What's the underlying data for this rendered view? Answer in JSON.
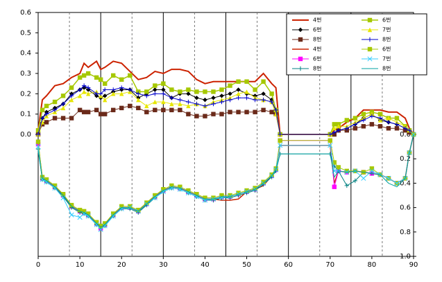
{
  "chart_data": {
    "type": "line",
    "x": [
      0,
      1,
      2,
      4,
      6,
      8,
      10,
      11,
      12,
      14,
      15,
      16,
      18,
      20,
      22,
      24,
      26,
      28,
      30,
      32,
      34,
      36,
      38,
      40,
      42,
      44,
      46,
      48,
      50,
      52,
      54,
      56,
      57,
      58,
      70,
      71,
      72,
      74,
      76,
      78,
      80,
      82,
      84,
      86,
      88,
      89,
      90
    ],
    "xlim": [
      0,
      90
    ],
    "xticks": [
      0,
      10,
      20,
      30,
      40,
      50,
      60,
      70,
      80,
      90
    ],
    "ylim": [
      -0.6,
      0.6
    ],
    "yticks": [
      {
        "value": 0,
        "label": "0.0"
      },
      0.1,
      0.2,
      0.3,
      0.4,
      0.5,
      0.6
    ],
    "y2lim": [
      1,
      -1
    ],
    "y2ticks": [
      {
        "value": 0,
        "label": "0.0"
      },
      0.2,
      0.4,
      0.6,
      0.8,
      {
        "value": 1,
        "label": "1.0"
      }
    ],
    "solid_vlines": [
      15,
      30,
      45,
      60,
      75
    ],
    "dashed_vlines": [
      7.5,
      22.5,
      37.5,
      52.5,
      67.5,
      82.5
    ],
    "legend": "upper right",
    "series": [
      {
        "name": "4번",
        "color": "#cc2200",
        "marker": "none",
        "width": 2,
        "values": [
          0.02,
          0.17,
          0.19,
          0.24,
          0.25,
          0.28,
          0.3,
          0.35,
          0.33,
          0.36,
          0.32,
          0.33,
          0.36,
          0.35,
          0.31,
          0.27,
          0.28,
          0.31,
          0.3,
          0.32,
          0.32,
          0.31,
          0.27,
          0.25,
          0.26,
          0.26,
          0.26,
          0.26,
          0.26,
          0.26,
          0.3,
          0.25,
          0.23,
          0.0,
          0.0,
          0.02,
          0.03,
          0.06,
          0.08,
          0.12,
          0.12,
          0.12,
          0.11,
          0.11,
          0.08,
          0.03,
          0.0
        ]
      },
      {
        "name": "6번",
        "color": "#000000",
        "marker": "diamond",
        "width": 1,
        "values": [
          0.0,
          0.08,
          0.11,
          0.13,
          0.15,
          0.2,
          0.22,
          0.23,
          0.22,
          0.19,
          0.18,
          0.19,
          0.21,
          0.22,
          0.22,
          0.18,
          0.2,
          0.22,
          0.22,
          0.18,
          0.2,
          0.2,
          0.18,
          0.17,
          0.18,
          0.19,
          0.2,
          0.22,
          0.2,
          0.19,
          0.2,
          0.17,
          0.11,
          0.0,
          0.0,
          0.0,
          0.02,
          0.03,
          0.05,
          0.08,
          0.1,
          0.07,
          0.06,
          0.05,
          0.03,
          0.02,
          0.0
        ]
      },
      {
        "name": "8번",
        "color": "#6b2a1a",
        "marker": "square",
        "width": 1,
        "values": [
          0.0,
          0.05,
          0.06,
          0.08,
          0.08,
          0.08,
          0.12,
          0.11,
          0.11,
          0.12,
          0.1,
          0.1,
          0.12,
          0.13,
          0.14,
          0.13,
          0.11,
          0.12,
          0.12,
          0.12,
          0.12,
          0.1,
          0.09,
          0.09,
          0.1,
          0.1,
          0.11,
          0.11,
          0.11,
          0.11,
          0.12,
          0.11,
          0.1,
          0.0,
          0.0,
          0.0,
          0.02,
          0.02,
          0.03,
          0.04,
          0.05,
          0.04,
          0.03,
          0.03,
          0.02,
          0.01,
          0.0
        ]
      },
      {
        "name": "4번",
        "color": "#cc2200",
        "marker": "none",
        "width": 1.5,
        "axis": "y2",
        "values": [
          0.08,
          0.36,
          0.38,
          0.43,
          0.5,
          0.59,
          0.63,
          0.64,
          0.66,
          0.73,
          0.76,
          0.74,
          0.66,
          0.6,
          0.6,
          0.63,
          0.57,
          0.51,
          0.46,
          0.43,
          0.44,
          0.47,
          0.5,
          0.53,
          0.53,
          0.54,
          0.54,
          0.53,
          0.47,
          0.45,
          0.42,
          0.34,
          0.29,
          0.09,
          0.09,
          0.4,
          0.3,
          0.31,
          0.3,
          0.31,
          0.32,
          0.33,
          0.36,
          0.4,
          0.36,
          0.15,
          0.0
        ]
      },
      {
        "name": "6번",
        "color": "#ff00ff",
        "marker": "square",
        "width": 1,
        "axis": "y2",
        "values": [
          0.08,
          0.36,
          0.38,
          0.43,
          0.5,
          0.59,
          0.63,
          0.64,
          0.66,
          0.73,
          0.77,
          0.74,
          0.66,
          0.6,
          0.6,
          0.63,
          0.57,
          0.51,
          0.46,
          0.43,
          0.44,
          0.47,
          0.5,
          0.53,
          0.53,
          0.51,
          0.51,
          0.49,
          0.47,
          0.45,
          0.4,
          0.34,
          0.29,
          0.05,
          0.05,
          0.43,
          0.3,
          0.31,
          0.3,
          0.31,
          0.32,
          0.33,
          0.36,
          0.4,
          0.36,
          0.15,
          0.0
        ]
      },
      {
        "name": "8번",
        "color": "#008080",
        "marker": "plus",
        "width": 1,
        "axis": "y2",
        "values": [
          0.12,
          0.37,
          0.39,
          0.44,
          0.51,
          0.6,
          0.64,
          0.65,
          0.67,
          0.74,
          0.77,
          0.75,
          0.67,
          0.61,
          0.61,
          0.64,
          0.58,
          0.52,
          0.47,
          0.44,
          0.45,
          0.48,
          0.51,
          0.54,
          0.54,
          0.52,
          0.52,
          0.5,
          0.48,
          0.46,
          0.41,
          0.35,
          0.3,
          0.16,
          0.16,
          0.26,
          0.3,
          0.42,
          0.38,
          0.31,
          0.32,
          0.33,
          0.36,
          0.4,
          0.36,
          0.15,
          0.0
        ]
      },
      {
        "name": "6번",
        "color": "#a6c800",
        "marker": "square",
        "width": 1.5,
        "values": [
          0.02,
          0.12,
          0.14,
          0.16,
          0.19,
          0.23,
          0.28,
          0.29,
          0.3,
          0.28,
          0.27,
          0.25,
          0.29,
          0.27,
          0.29,
          0.21,
          0.21,
          0.24,
          0.25,
          0.22,
          0.21,
          0.22,
          0.21,
          0.21,
          0.21,
          0.22,
          0.24,
          0.26,
          0.26,
          0.22,
          0.26,
          0.2,
          0.12,
          0.0,
          0.0,
          0.05,
          0.05,
          0.07,
          0.08,
          0.1,
          0.11,
          0.1,
          0.08,
          0.08,
          0.04,
          0.02,
          0.0
        ]
      },
      {
        "name": "7번",
        "color": "#e6e600",
        "marker": "triangle",
        "width": 1,
        "values": [
          0.0,
          0.06,
          0.09,
          0.11,
          0.13,
          0.17,
          0.19,
          0.21,
          0.2,
          0.21,
          0.19,
          0.17,
          0.2,
          0.2,
          0.21,
          0.17,
          0.14,
          0.16,
          0.16,
          0.15,
          0.15,
          0.14,
          0.15,
          0.14,
          0.16,
          0.17,
          0.18,
          0.2,
          0.21,
          0.18,
          0.17,
          0.16,
          0.1,
          0.0,
          0.0,
          0.03,
          0.04,
          0.04,
          0.06,
          0.08,
          0.1,
          0.07,
          0.08,
          0.06,
          0.04,
          0.02,
          0.0
        ]
      },
      {
        "name": "8번",
        "color": "#0000cc",
        "marker": "plus",
        "width": 1,
        "values": [
          0.0,
          0.08,
          0.1,
          0.12,
          0.15,
          0.19,
          0.22,
          0.24,
          0.23,
          0.2,
          0.2,
          0.22,
          0.22,
          0.23,
          0.22,
          0.2,
          0.19,
          0.2,
          0.2,
          0.18,
          0.17,
          0.16,
          0.15,
          0.14,
          0.15,
          0.16,
          0.17,
          0.18,
          0.18,
          0.17,
          0.17,
          0.16,
          0.12,
          0.0,
          0.0,
          0.01,
          0.02,
          0.03,
          0.05,
          0.07,
          0.09,
          0.08,
          0.06,
          0.05,
          0.03,
          0.02,
          0.0
        ]
      },
      {
        "name": "6번",
        "color": "#a6c800",
        "marker": "square",
        "width": 1,
        "axis": "y2",
        "values": [
          0.06,
          0.35,
          0.37,
          0.42,
          0.49,
          0.58,
          0.62,
          0.63,
          0.65,
          0.72,
          0.75,
          0.73,
          0.65,
          0.59,
          0.59,
          0.62,
          0.56,
          0.5,
          0.45,
          0.42,
          0.43,
          0.46,
          0.49,
          0.52,
          0.52,
          0.5,
          0.5,
          0.48,
          0.46,
          0.44,
          0.39,
          0.33,
          0.28,
          0.05,
          0.05,
          0.23,
          0.27,
          0.3,
          0.3,
          0.31,
          0.28,
          0.33,
          0.36,
          0.4,
          0.36,
          0.15,
          0.0
        ]
      },
      {
        "name": "7번",
        "color": "#33ccff",
        "marker": "x",
        "width": 1,
        "axis": "y2",
        "values": [
          0.1,
          0.37,
          0.39,
          0.44,
          0.52,
          0.66,
          0.68,
          0.65,
          0.67,
          0.74,
          0.78,
          0.75,
          0.67,
          0.61,
          0.6,
          0.63,
          0.57,
          0.52,
          0.47,
          0.44,
          0.45,
          0.48,
          0.51,
          0.54,
          0.53,
          0.52,
          0.51,
          0.49,
          0.47,
          0.45,
          0.4,
          0.34,
          0.29,
          0.09,
          0.09,
          0.3,
          0.3,
          0.31,
          0.3,
          0.36,
          0.3,
          0.33,
          0.36,
          0.4,
          0.36,
          0.15,
          0.0
        ]
      },
      {
        "name": "8번",
        "color": "#00a0a0",
        "marker": "none",
        "width": 1,
        "axis": "y2",
        "values": [
          0.14,
          0.36,
          0.38,
          0.43,
          0.5,
          0.59,
          0.63,
          0.64,
          0.66,
          0.73,
          0.76,
          0.74,
          0.66,
          0.6,
          0.6,
          0.63,
          0.57,
          0.51,
          0.46,
          0.43,
          0.44,
          0.47,
          0.5,
          0.53,
          0.53,
          0.51,
          0.51,
          0.49,
          0.47,
          0.45,
          0.4,
          0.34,
          0.29,
          0.16,
          0.16,
          0.35,
          0.3,
          0.31,
          0.3,
          0.31,
          0.32,
          0.33,
          0.4,
          0.43,
          0.36,
          0.15,
          0.0
        ]
      }
    ]
  }
}
